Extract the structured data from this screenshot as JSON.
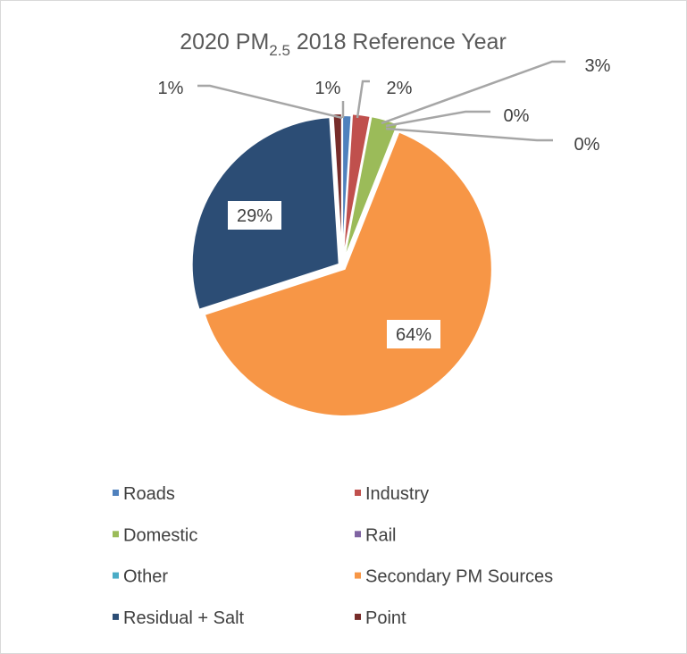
{
  "chart_data": {
    "type": "pie",
    "title": {
      "main": "2020 PM",
      "subscript": "2.5",
      "rest": " 2018 Reference Year"
    },
    "categories": [
      "Roads",
      "Industry",
      "Domestic",
      "Rail",
      "Other",
      "Secondary PM Sources",
      "Residual + Salt",
      "Point"
    ],
    "values": [
      1,
      2,
      3,
      0,
      0,
      64,
      29,
      1
    ],
    "data_labels": [
      "1%",
      "2%",
      "3%",
      "0%",
      "0%",
      "64%",
      "29%",
      "1%"
    ],
    "colors": [
      "#4F81BD",
      "#C0504D",
      "#9BBB59",
      "#8064A2",
      "#4BACC6",
      "#F79646",
      "#2C4D75",
      "#772C2A"
    ],
    "legend_position": "bottom",
    "unit": "%"
  }
}
